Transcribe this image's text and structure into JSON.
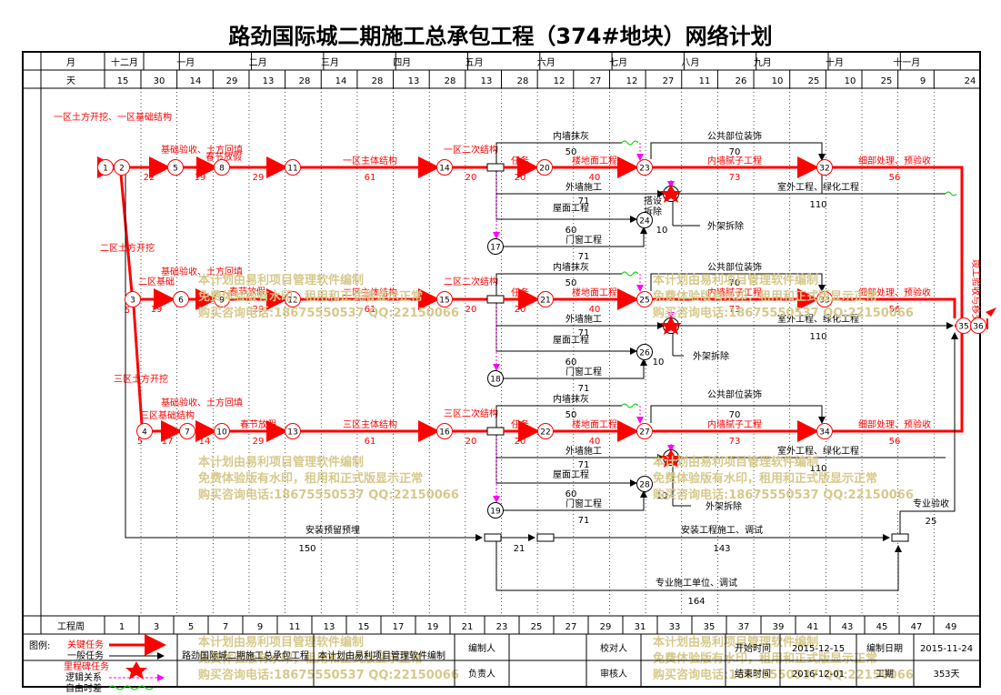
{
  "title": "路劲国际城二期施工总承包工程（374#地块）网络计划",
  "header": {
    "month_label": "月",
    "day_label": "天",
    "months": [
      "十二月",
      "一月",
      "二月",
      "三月",
      "四月",
      "五月",
      "六月",
      "七月",
      "八月",
      "九月",
      "十月",
      "十一月"
    ],
    "days": [
      "15",
      "30",
      "14",
      "29",
      "13",
      "28",
      "14",
      "28",
      "13",
      "28",
      "13",
      "28",
      "12",
      "27",
      "12",
      "27",
      "11",
      "26",
      "10",
      "25",
      "10",
      "25",
      "9",
      "24"
    ],
    "week_label": "工程周",
    "weeks": [
      "1",
      "3",
      "5",
      "7",
      "9",
      "11",
      "13",
      "15",
      "17",
      "19",
      "21",
      "23",
      "25",
      "27",
      "29",
      "31",
      "33",
      "35",
      "37",
      "39",
      "41",
      "43",
      "45",
      "47",
      "49"
    ]
  },
  "watermark": {
    "line1": "本计划由易利项目管理软件编制",
    "line2": "免费体验版有水印，租用和正式版显示正常",
    "line3": "购买咨询电话:18675550537 QQ:22150066"
  },
  "nodes": [
    {
      "id": "n1",
      "label": "1"
    },
    {
      "id": "n2",
      "label": "2"
    },
    {
      "id": "n5a",
      "label": "5"
    },
    {
      "id": "n8",
      "label": "8"
    },
    {
      "id": "n11",
      "label": "11"
    },
    {
      "id": "n14",
      "label": "14"
    },
    {
      "id": "n20",
      "label": "20"
    },
    {
      "id": "n23",
      "label": "23"
    },
    {
      "id": "n32",
      "label": "32"
    },
    {
      "id": "n24",
      "label": "24"
    },
    {
      "id": "n17",
      "label": "17"
    },
    {
      "id": "n3",
      "label": "3"
    },
    {
      "id": "n6",
      "label": "6"
    },
    {
      "id": "n9",
      "label": "9"
    },
    {
      "id": "n12",
      "label": "12"
    },
    {
      "id": "n15",
      "label": "15"
    },
    {
      "id": "n21",
      "label": "21"
    },
    {
      "id": "n25",
      "label": "25"
    },
    {
      "id": "n33",
      "label": "33"
    },
    {
      "id": "n26",
      "label": "26"
    },
    {
      "id": "n18",
      "label": "18"
    },
    {
      "id": "n35",
      "label": "35"
    },
    {
      "id": "n36",
      "label": "36"
    },
    {
      "id": "n4",
      "label": "4"
    },
    {
      "id": "n7",
      "label": "7"
    },
    {
      "id": "n10",
      "label": "10"
    },
    {
      "id": "n13",
      "label": "13"
    },
    {
      "id": "n16",
      "label": "16"
    },
    {
      "id": "n22",
      "label": "22"
    },
    {
      "id": "n27",
      "label": "27"
    },
    {
      "id": "n34",
      "label": "34"
    },
    {
      "id": "n28",
      "label": "28"
    },
    {
      "id": "n19",
      "label": "19"
    },
    {
      "id": "n29",
      "label": "29"
    },
    {
      "id": "n30",
      "label": "30"
    },
    {
      "id": "n31",
      "label": "31"
    }
  ],
  "tasks": {
    "r1": [
      "一区土方开挖、一区基础结构",
      "22",
      "基础验收、土方回填",
      "19",
      "春节放假",
      "29",
      "一区主体结构",
      "61",
      "一区二次结构",
      "20",
      "任务",
      "20",
      "楼地面工程",
      "40",
      "内墙抹灰",
      "50",
      "公共部位装饰",
      "70",
      "内墙腻子工程",
      "73",
      "细部处理、预验收",
      "56",
      "外墙施工",
      "71",
      "室外工程、绿化工程",
      "110",
      "屋面工程",
      "60",
      "门窗工程",
      "71",
      "外架拆除",
      "10",
      "搭设",
      "拆除",
      "7"
    ],
    "r2": [
      "二区土方开挖",
      "二区基础",
      "19",
      "基础验收、土方回填",
      "春节放假",
      "29",
      "二区主体结构",
      "61",
      "二区二次结构",
      "20",
      "任务",
      "20",
      "楼地面工程",
      "40",
      "内墙抹灰",
      "50",
      "公共部位装饰",
      "70",
      "内墙腻子工程",
      "73",
      "细部处理、预验收",
      "56",
      "外墙施工",
      "71",
      "室外工程、绿化工程",
      "110",
      "屋面工程",
      "60",
      "门窗工程",
      "71",
      "外架拆除",
      "10",
      "5",
      "7"
    ],
    "r3": [
      "三区土方开挖",
      "三区基础结构",
      "17",
      "基础验收、土方回填",
      "14",
      "春节放假",
      "29",
      "三区主体结构",
      "61",
      "三区二次结构",
      "20",
      "任务",
      "20",
      "楼地面工程",
      "40",
      "内墙抹灰",
      "50",
      "公共部位装饰",
      "70",
      "内墙腻子工程",
      "73",
      "细部处理、预验收",
      "56",
      "外墙施工",
      "71",
      "室外工程、绿化工程",
      "110",
      "屋面工程",
      "60",
      "门窗工程",
      "71",
      "外架拆除",
      "10",
      "5"
    ],
    "bottom": [
      "安装预留预埋",
      "150",
      "21",
      "安装工程施工、调试",
      "143",
      "专业施工单位、调试",
      "164",
      "专业验收",
      "25",
      "竣工验收与移交"
    ]
  },
  "footer": {
    "legend_label": "图例:",
    "legend": [
      "关键任务",
      "一般任务",
      "里程碑任务",
      "逻辑关系",
      "自由时差"
    ],
    "project": "路劲国际城二期施工总承包工程",
    "made_by": "本计划由易利项目管理软件编制",
    "compiler_label": "编制人",
    "owner_label": "负责人",
    "checker_label": "校对人",
    "reviewer_label": "审核人",
    "start_label": "开始时间",
    "start_value": "2015-12-15",
    "end_label": "结束时间",
    "end_value": "2016-12-01",
    "date_label": "编制日期",
    "date_value": "2015-11-24",
    "duration_label": "工期",
    "duration_value": "353天"
  },
  "colors": {
    "critical": "#ff0000",
    "normal": "#000000",
    "logic": "#ff00ff",
    "float": "#00cc00",
    "watermark": "#d6c98c"
  }
}
